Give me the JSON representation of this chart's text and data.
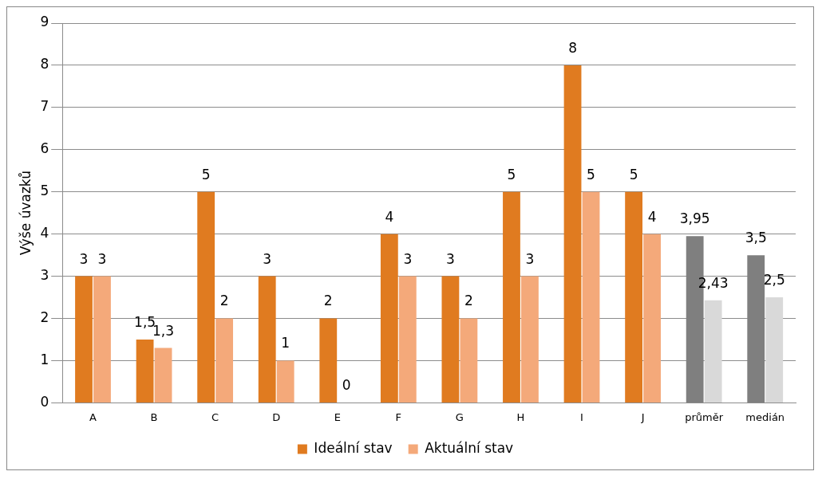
{
  "chart_data": {
    "type": "bar",
    "ylabel": "Výše úvazků",
    "categories": [
      "A",
      "B",
      "C",
      "D",
      "E",
      "F",
      "G",
      "H",
      "I",
      "J",
      "průměr",
      "medián"
    ],
    "series": [
      {
        "name": "Ideální stav",
        "color": "#e07b20",
        "colors": [
          "#e07b20",
          "#e07b20",
          "#e07b20",
          "#e07b20",
          "#e07b20",
          "#e07b20",
          "#e07b20",
          "#e07b20",
          "#e07b20",
          "#e07b20",
          "#7f7f7f",
          "#7f7f7f"
        ],
        "values": [
          3,
          1.5,
          5,
          3,
          2,
          4,
          3,
          5,
          8,
          5,
          3.95,
          3.5
        ],
        "value_labels": [
          "3",
          "1,5",
          "5",
          "3",
          "2",
          "4",
          "3",
          "5",
          "8",
          "5",
          "3,95",
          "3,5"
        ]
      },
      {
        "name": "Aktuální stav",
        "color": "#f4a97a",
        "colors": [
          "#f4a97a",
          "#f4a97a",
          "#f4a97a",
          "#f4a97a",
          "#f4a97a",
          "#f4a97a",
          "#f4a97a",
          "#f4a97a",
          "#f4a97a",
          "#f4a97a",
          "#d9d9d9",
          "#d9d9d9"
        ],
        "values": [
          3,
          1.3,
          2,
          1,
          0,
          3,
          2,
          3,
          5,
          4,
          2.43,
          2.5
        ],
        "value_labels": [
          "3",
          "1,3",
          "2",
          "1",
          "0",
          "3",
          "2",
          "3",
          "5",
          "4",
          "2,43",
          "2,5"
        ]
      }
    ],
    "ylim": [
      0,
      9
    ],
    "yticks": [
      0,
      1,
      2,
      3,
      4,
      5,
      6,
      7,
      8,
      9
    ],
    "grid": "y",
    "legend": "bottom"
  }
}
